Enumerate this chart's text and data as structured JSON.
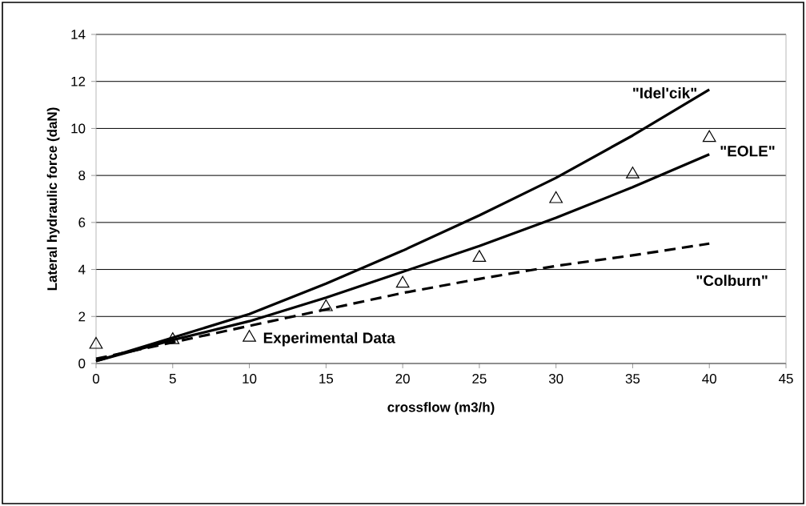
{
  "chart_data": {
    "type": "line",
    "xlabel": "crossflow (m3/h)",
    "ylabel": "Lateral hydraulic force (daN)",
    "xlim": [
      0,
      45
    ],
    "xticks": [
      0,
      5,
      10,
      15,
      20,
      25,
      30,
      35,
      40,
      45
    ],
    "ylim": [
      0,
      14
    ],
    "yticks": [
      0,
      2,
      4,
      6,
      8,
      10,
      12,
      14
    ],
    "grid": "y",
    "x": [
      0,
      5,
      10,
      15,
      20,
      25,
      30,
      35,
      40
    ],
    "series": [
      {
        "name": "\"Idel'cik\"",
        "color": "#000000",
        "marker": "none",
        "line_style": "solid",
        "values": [
          0.1,
          1.1,
          2.1,
          3.4,
          4.8,
          6.3,
          7.9,
          9.7,
          11.65
        ]
      },
      {
        "name": "\"EOLE\"",
        "color": "#000000",
        "marker": "none",
        "line_style": "solid",
        "values": [
          0.1,
          1.0,
          1.8,
          2.8,
          3.9,
          5.0,
          6.2,
          7.5,
          8.9
        ]
      },
      {
        "name": "\"Colburn\"",
        "color": "#000000",
        "marker": "none",
        "line_style": "dashed",
        "values": [
          0.2,
          0.9,
          1.6,
          2.3,
          3.0,
          3.6,
          4.15,
          4.6,
          5.1
        ]
      },
      {
        "name": "Experimental Data",
        "type": "scatter",
        "color": "#000000",
        "marker": "triangle",
        "values": [
          0.8,
          1.0,
          1.1,
          2.4,
          3.4,
          4.5,
          7.0,
          8.05,
          9.6
        ]
      }
    ]
  }
}
